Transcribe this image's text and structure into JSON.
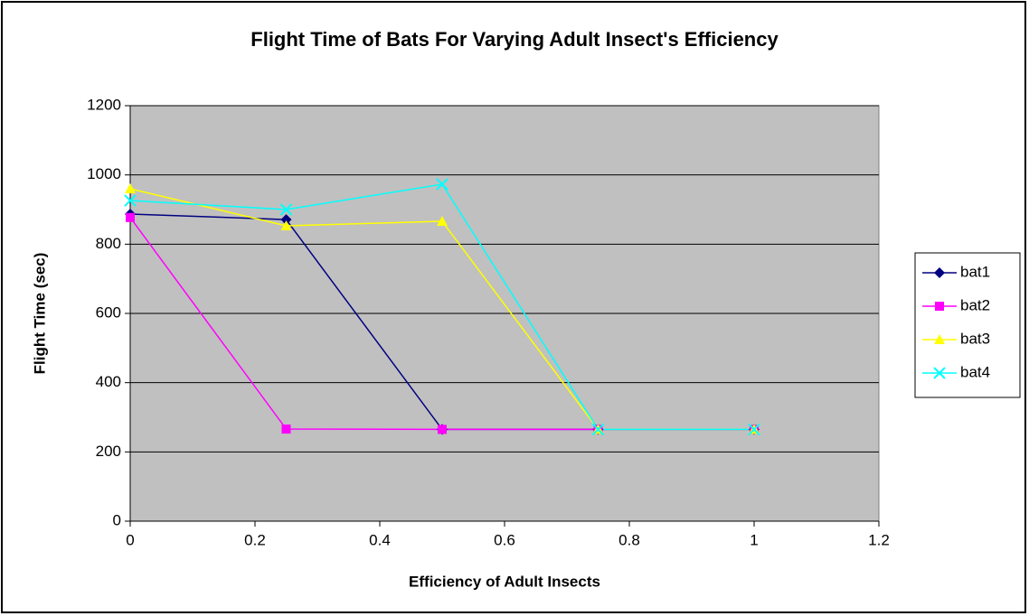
{
  "chart_data": {
    "type": "line",
    "title": "Flight Time of Bats For Varying Adult Insect's Efficiency",
    "xlabel": "Efficiency of Adult Insects",
    "ylabel": "Flight Time (sec)",
    "x": [
      0,
      0.25,
      0.5,
      0.75,
      1
    ],
    "series": [
      {
        "name": "bat1",
        "color": "#000080",
        "marker": "diamond",
        "values": [
          887,
          871,
          265,
          265,
          265
        ]
      },
      {
        "name": "bat2",
        "color": "#ff00ff",
        "marker": "square",
        "values": [
          877,
          266,
          265,
          265,
          265
        ]
      },
      {
        "name": "bat3",
        "color": "#ffff00",
        "marker": "triangle",
        "values": [
          960,
          853,
          866,
          265,
          265
        ]
      },
      {
        "name": "bat4",
        "color": "#00ffff",
        "marker": "x",
        "values": [
          926,
          900,
          973,
          265,
          265
        ]
      }
    ],
    "xlim": [
      0,
      1.2
    ],
    "xticks": [
      0,
      0.2,
      0.4,
      0.6,
      0.8,
      1,
      1.2
    ],
    "ylim": [
      0,
      1200
    ],
    "yticks": [
      0,
      200,
      400,
      600,
      800,
      1000,
      1200
    ],
    "grid": true,
    "legend": "right"
  }
}
